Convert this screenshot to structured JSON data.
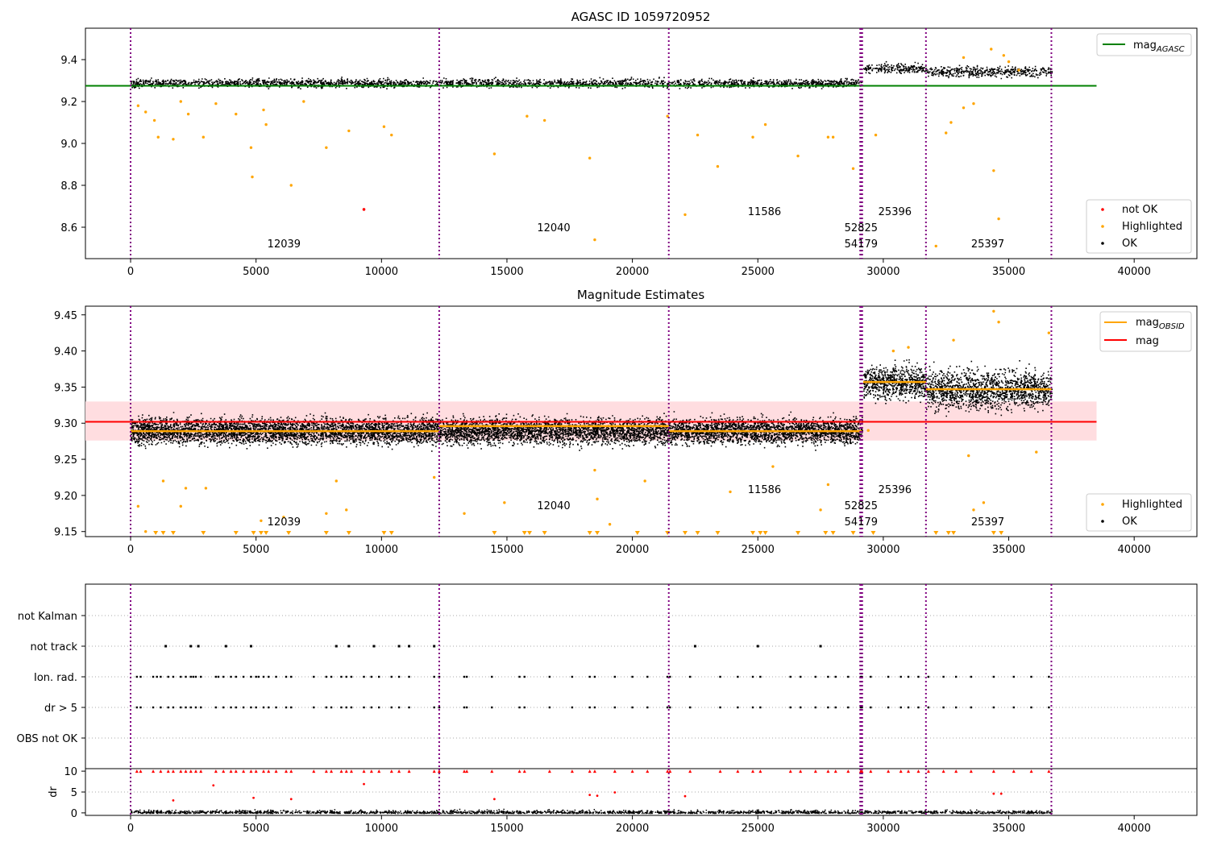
{
  "figure": {
    "title": "AGASC ID 1059720952",
    "axes_xlim": [
      -1800,
      42500
    ],
    "x_ticks": [
      0,
      5000,
      10000,
      15000,
      20000,
      25000,
      30000,
      35000,
      40000
    ],
    "obs_boundaries": [
      0,
      12300,
      21450,
      29080,
      29120,
      29160,
      31700,
      36700
    ],
    "obs_labels_top": [
      {
        "text": "12039",
        "x": 5450,
        "row": 3
      },
      {
        "text": "12040",
        "x": 16200,
        "row": 2
      },
      {
        "text": "11586",
        "x": 24600,
        "row": 1
      },
      {
        "text": "52825",
        "x": 28450,
        "row": 2
      },
      {
        "text": "54179",
        "x": 28450,
        "row": 3
      },
      {
        "text": "25396",
        "x": 29800,
        "row": 1
      },
      {
        "text": "25397",
        "x": 33500,
        "row": 3
      }
    ],
    "colors": {
      "ok": "#000000",
      "highlighted": "#ffa500",
      "not_ok": "#ff0000",
      "boundary": "#800080",
      "agasc_line": "#008000",
      "mag_line": "#ff0000",
      "mag_band": "#ffdde0",
      "obsid_line": "#ffa500"
    }
  },
  "chart_data": [
    {
      "type": "scatter",
      "title": "AGASC ID 1059720952",
      "ylim": [
        8.45,
        9.55
      ],
      "y_ticks": [
        8.6,
        8.8,
        9.0,
        9.2,
        9.4
      ],
      "mag_agasc": {
        "value": 9.275,
        "x_range": [
          -1800,
          38500
        ]
      },
      "ok_bands": [
        {
          "x": [
            0,
            29150
          ],
          "center": 9.29,
          "spread": 0.018
        },
        {
          "x": [
            29200,
            31700
          ],
          "center": 9.36,
          "spread": 0.02
        },
        {
          "x": [
            31700,
            36700
          ],
          "center": 9.345,
          "spread": 0.022
        }
      ],
      "not_ok_points": [
        {
          "x": 9300,
          "y": 8.685
        }
      ],
      "highlighted_points": [
        {
          "x": 300,
          "y": 9.18
        },
        {
          "x": 600,
          "y": 9.15
        },
        {
          "x": 950,
          "y": 9.11
        },
        {
          "x": 1100,
          "y": 9.03
        },
        {
          "x": 1700,
          "y": 9.02
        },
        {
          "x": 2000,
          "y": 9.2
        },
        {
          "x": 2300,
          "y": 9.14
        },
        {
          "x": 2900,
          "y": 9.03
        },
        {
          "x": 3400,
          "y": 9.19
        },
        {
          "x": 4200,
          "y": 9.14
        },
        {
          "x": 4800,
          "y": 8.98
        },
        {
          "x": 4850,
          "y": 8.84
        },
        {
          "x": 5300,
          "y": 9.16
        },
        {
          "x": 5400,
          "y": 9.09
        },
        {
          "x": 6400,
          "y": 8.8
        },
        {
          "x": 6900,
          "y": 9.2
        },
        {
          "x": 7800,
          "y": 8.98
        },
        {
          "x": 8700,
          "y": 9.06
        },
        {
          "x": 10100,
          "y": 9.08
        },
        {
          "x": 10400,
          "y": 9.04
        },
        {
          "x": 14500,
          "y": 8.95
        },
        {
          "x": 15800,
          "y": 9.13
        },
        {
          "x": 16500,
          "y": 9.11
        },
        {
          "x": 18300,
          "y": 8.93
        },
        {
          "x": 18500,
          "y": 8.54
        },
        {
          "x": 21400,
          "y": 9.13
        },
        {
          "x": 22100,
          "y": 8.66
        },
        {
          "x": 22600,
          "y": 9.04
        },
        {
          "x": 23400,
          "y": 8.89
        },
        {
          "x": 24800,
          "y": 9.03
        },
        {
          "x": 25300,
          "y": 9.09
        },
        {
          "x": 26600,
          "y": 8.94
        },
        {
          "x": 27800,
          "y": 9.03
        },
        {
          "x": 28000,
          "y": 9.03
        },
        {
          "x": 28800,
          "y": 8.88
        },
        {
          "x": 29700,
          "y": 9.04
        },
        {
          "x": 32100,
          "y": 8.51
        },
        {
          "x": 32500,
          "y": 9.05
        },
        {
          "x": 32700,
          "y": 9.1
        },
        {
          "x": 33200,
          "y": 9.17
        },
        {
          "x": 34400,
          "y": 8.87
        },
        {
          "x": 34600,
          "y": 8.64
        },
        {
          "x": 33600,
          "y": 9.19
        },
        {
          "x": 35400,
          "y": 9.35
        },
        {
          "x": 34800,
          "y": 9.42
        },
        {
          "x": 34300,
          "y": 9.45
        },
        {
          "x": 33200,
          "y": 9.41
        },
        {
          "x": 35000,
          "y": 9.39
        }
      ],
      "legend_top": {
        "label_main": "mag",
        "label_sub": "AGASC"
      },
      "legend_bottom": [
        "not OK",
        "Highlighted",
        "OK"
      ]
    },
    {
      "type": "scatter",
      "title": "Magnitude Estimates",
      "ylim": [
        9.143,
        9.462
      ],
      "y_ticks": [
        9.15,
        9.2,
        9.25,
        9.3,
        9.35,
        9.4,
        9.45
      ],
      "mag": {
        "value": 9.302,
        "band": [
          9.276,
          9.33
        ],
        "x_range": [
          -1800,
          38500
        ]
      },
      "obsid_means": [
        {
          "x": [
            0,
            12300
          ],
          "value": 9.289
        },
        {
          "x": [
            12300,
            21450
          ],
          "value": 9.296
        },
        {
          "x": [
            21450,
            29150
          ],
          "value": 9.289
        },
        {
          "x": [
            29200,
            31700
          ],
          "value": 9.357
        },
        {
          "x": [
            31700,
            36700
          ],
          "value": 9.347
        }
      ],
      "ok_bands": [
        {
          "x": [
            0,
            29150
          ],
          "center": 9.29,
          "spread": 0.016
        },
        {
          "x": [
            29200,
            31700
          ],
          "center": 9.357,
          "spread": 0.02
        },
        {
          "x": [
            31700,
            36700
          ],
          "center": 9.347,
          "spread": 0.024
        }
      ],
      "highlighted_points": [
        {
          "x": 300,
          "y": 9.185
        },
        {
          "x": 600,
          "y": 9.15
        },
        {
          "x": 1300,
          "y": 9.22
        },
        {
          "x": 2000,
          "y": 9.185
        },
        {
          "x": 2200,
          "y": 9.21
        },
        {
          "x": 3000,
          "y": 9.21
        },
        {
          "x": 5200,
          "y": 9.165
        },
        {
          "x": 6100,
          "y": 9.17
        },
        {
          "x": 7800,
          "y": 9.175
        },
        {
          "x": 8200,
          "y": 9.22
        },
        {
          "x": 8600,
          "y": 9.18
        },
        {
          "x": 12100,
          "y": 9.225
        },
        {
          "x": 13300,
          "y": 9.175
        },
        {
          "x": 14900,
          "y": 9.19
        },
        {
          "x": 18500,
          "y": 9.235
        },
        {
          "x": 18600,
          "y": 9.195
        },
        {
          "x": 19100,
          "y": 9.16
        },
        {
          "x": 20500,
          "y": 9.22
        },
        {
          "x": 23900,
          "y": 9.205
        },
        {
          "x": 25600,
          "y": 9.24
        },
        {
          "x": 27500,
          "y": 9.18
        },
        {
          "x": 27800,
          "y": 9.215
        },
        {
          "x": 29400,
          "y": 9.29
        },
        {
          "x": 33400,
          "y": 9.255
        },
        {
          "x": 33600,
          "y": 9.18
        },
        {
          "x": 34000,
          "y": 9.19
        },
        {
          "x": 36100,
          "y": 9.26
        },
        {
          "x": 34400,
          "y": 9.455
        },
        {
          "x": 34600,
          "y": 9.44
        },
        {
          "x": 36600,
          "y": 9.425
        },
        {
          "x": 32800,
          "y": 9.415
        },
        {
          "x": 30400,
          "y": 9.4
        },
        {
          "x": 31000,
          "y": 9.405
        }
      ],
      "floor_markers_x": [
        1000,
        1300,
        1700,
        2900,
        4200,
        4900,
        5200,
        5400,
        6300,
        7800,
        8700,
        10100,
        10400,
        14500,
        15700,
        15900,
        16500,
        18300,
        18600,
        20200,
        21400,
        22100,
        22600,
        23400,
        24800,
        25100,
        25300,
        26600,
        27700,
        28000,
        28800,
        29600,
        32100,
        32600,
        32800,
        34400,
        34700
      ],
      "legend_top": [
        {
          "label_main": "mag",
          "label_sub": "OBSID"
        },
        {
          "label_main": "mag",
          "label_sub": ""
        }
      ],
      "legend_bottom": [
        "Highlighted",
        "OK"
      ]
    },
    {
      "type": "scatter",
      "title": "",
      "categories": [
        "not Kalman",
        "not track",
        "Ion. rad.",
        "dr > 5",
        "OBS not OK"
      ],
      "not_track_x": [
        1400,
        2400,
        2700,
        3800,
        4800,
        8200,
        8700,
        9700,
        10700,
        11100,
        12100,
        22500,
        25000,
        27500
      ],
      "ion_rad_x": [
        250,
        400,
        900,
        1050,
        1200,
        1500,
        1700,
        2000,
        2200,
        2400,
        2500,
        2600,
        2800,
        3400,
        3500,
        3700,
        4000,
        4200,
        4500,
        4800,
        5000,
        5100,
        5300,
        5500,
        5800,
        6200,
        6400,
        7300,
        7800,
        8000,
        8400,
        8600,
        8800,
        9300,
        9600,
        9900,
        10400,
        10700,
        11100,
        12100,
        12300,
        13300,
        13400,
        14400,
        15500,
        15700,
        16700,
        17600,
        18300,
        18500,
        19300,
        20000,
        20600,
        21400,
        21500,
        22300,
        23500,
        24200,
        24800,
        25100,
        26300,
        26700,
        27300,
        27800,
        28100,
        28600,
        29100,
        29150,
        29500,
        30200,
        30700,
        31000,
        31400,
        31800,
        32400,
        32900,
        33500,
        34400,
        35200,
        35900,
        36600
      ],
      "dr5_x": [
        250,
        400,
        900,
        1200,
        1500,
        1700,
        2000,
        2200,
        2400,
        2600,
        2800,
        3400,
        3700,
        4000,
        4200,
        4500,
        4800,
        5000,
        5300,
        5500,
        5800,
        6200,
        6400,
        7300,
        7800,
        8000,
        8400,
        8600,
        8800,
        9300,
        9600,
        9900,
        10400,
        10700,
        11100,
        12100,
        12300,
        13300,
        13400,
        14400,
        15500,
        15700,
        16700,
        17600,
        18300,
        18500,
        19300,
        20000,
        20600,
        21400,
        21500,
        22300,
        23500,
        24200,
        24800,
        25100,
        26300,
        26700,
        27300,
        27800,
        28100,
        28600,
        29100,
        29150,
        29500,
        30200,
        30700,
        31000,
        31400,
        31800,
        32400,
        32900,
        33500,
        34400,
        35200,
        35900,
        36600
      ]
    },
    {
      "type": "scatter",
      "title": "",
      "ylabel": "dr",
      "ylim": [
        -0.6,
        10.6
      ],
      "y_ticks": [
        0,
        5,
        10
      ],
      "clip_value": 10,
      "high_x": [
        250,
        400,
        900,
        1200,
        1500,
        1700,
        2000,
        2200,
        2400,
        2600,
        2800,
        3400,
        3700,
        4000,
        4200,
        4500,
        4800,
        5000,
        5300,
        5500,
        5800,
        6200,
        6400,
        7300,
        7800,
        8000,
        8400,
        8600,
        8800,
        9300,
        9600,
        9900,
        10400,
        10700,
        11100,
        12100,
        12300,
        13300,
        13400,
        14400,
        15500,
        15700,
        16700,
        17600,
        18300,
        18500,
        19300,
        20000,
        20600,
        21400,
        21500,
        22300,
        23500,
        24200,
        24800,
        25100,
        26300,
        26700,
        27300,
        27800,
        28100,
        28600,
        29100,
        29150,
        29500,
        30200,
        30700,
        31000,
        31400,
        31800,
        32400,
        32900,
        33500,
        34400,
        35200,
        35900,
        36600
      ],
      "mid_points": [
        {
          "x": 3300,
          "y": 6.6
        },
        {
          "x": 9300,
          "y": 6.9
        },
        {
          "x": 1700,
          "y": 3.0
        },
        {
          "x": 4900,
          "y": 3.6
        },
        {
          "x": 6400,
          "y": 3.3
        },
        {
          "x": 14500,
          "y": 3.3
        },
        {
          "x": 18300,
          "y": 4.3
        },
        {
          "x": 18600,
          "y": 4.1
        },
        {
          "x": 19300,
          "y": 4.9
        },
        {
          "x": 22100,
          "y": 4.0
        },
        {
          "x": 34400,
          "y": 4.6
        },
        {
          "x": 34700,
          "y": 4.6
        }
      ]
    }
  ],
  "legend_symbols": {
    "ok": "•",
    "highlighted": "•",
    "not_ok": "•"
  }
}
